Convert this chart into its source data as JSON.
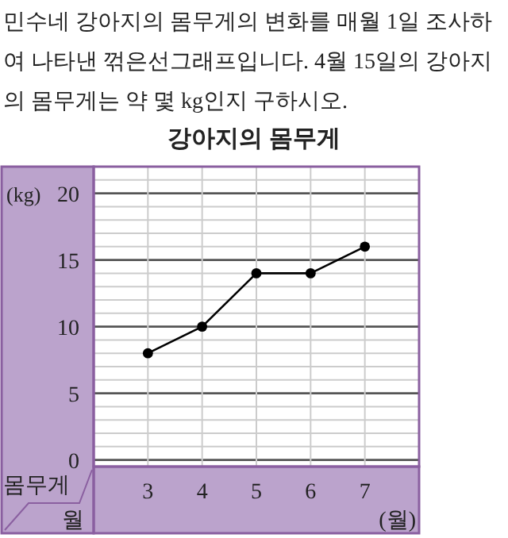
{
  "chart_data": {
    "type": "line",
    "title": "강아지의 몸무게",
    "annotations": [
      "민수네 강아지의 몸무게의 변화를 매월 1일 조사하여 나타낸 꺾은선그래프입니다. 4월 15일의 강아지의 몸무게는 약 몇 kg인지 구하시오.",
      "(kg)",
      "(월)"
    ],
    "ylabel": "몸무게",
    "xlabel": "월",
    "x": [
      3,
      4,
      5,
      6,
      7
    ],
    "series": [
      {
        "color": "#000000",
        "values": [
          8,
          10,
          14,
          14,
          16
        ]
      }
    ],
    "xlim": [
      2,
      8
    ],
    "xticks": [
      3,
      4,
      5,
      6,
      7
    ],
    "ylim": [
      -0.5,
      22
    ],
    "yticks": [
      0,
      {
        "value": 1,
        "label": null
      },
      {
        "value": 2,
        "label": null
      },
      {
        "value": 3,
        "label": null
      },
      {
        "value": 4,
        "label": null
      },
      5,
      {
        "value": 6,
        "label": null
      },
      {
        "value": 7,
        "label": null
      },
      {
        "value": 8,
        "label": null
      },
      {
        "value": 9,
        "label": null
      },
      10,
      {
        "value": 11,
        "label": null
      },
      {
        "value": 12,
        "label": null
      },
      {
        "value": 13,
        "label": null
      },
      {
        "value": 14,
        "label": null
      },
      15,
      {
        "value": 16,
        "label": null
      },
      {
        "value": 17,
        "label": null
      },
      {
        "value": 18,
        "label": null
      },
      {
        "value": 19,
        "label": null
      },
      20,
      {
        "value": 21,
        "label": null
      }
    ],
    "grid": true,
    "marker": "circle",
    "line_style": "solid"
  }
}
